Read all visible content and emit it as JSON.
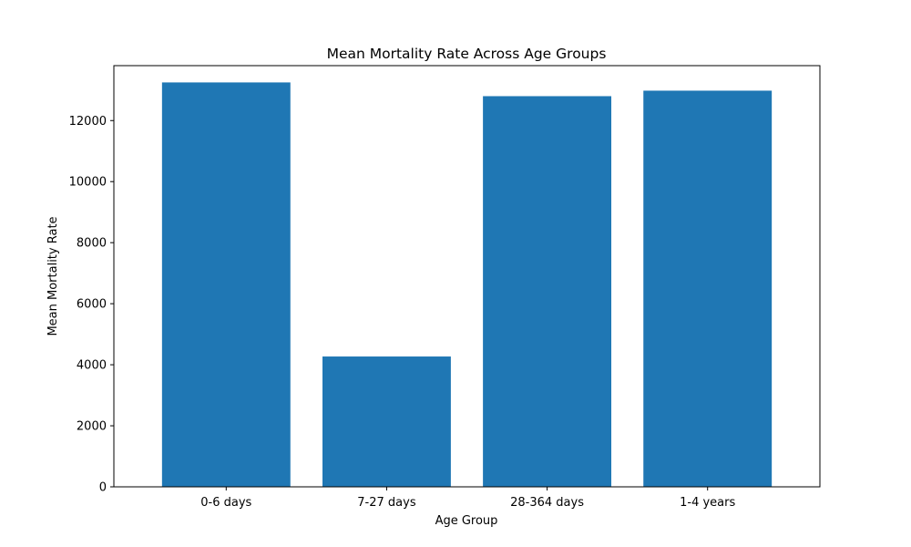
{
  "chart_data": {
    "type": "bar",
    "title": "Mean Mortality Rate Across Age Groups",
    "xlabel": "Age Group",
    "ylabel": "Mean Mortality Rate",
    "categories": [
      "0-6 days",
      "7-27 days",
      "28-364 days",
      "1-4 years"
    ],
    "values": [
      13250,
      4270,
      12800,
      12980
    ],
    "ylim": [
      0,
      13800
    ],
    "yticks": [
      0,
      2000,
      4000,
      6000,
      8000,
      10000,
      12000
    ],
    "bar_color": "#1f77b4",
    "grid": false,
    "legend": "none"
  }
}
